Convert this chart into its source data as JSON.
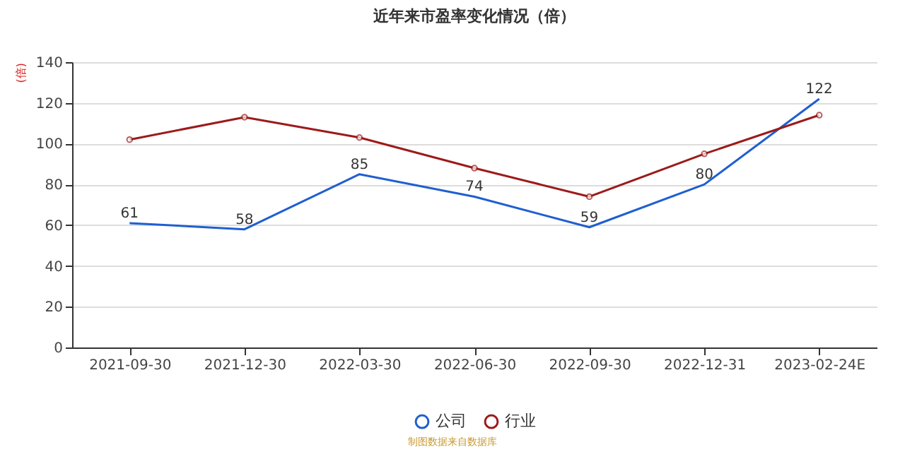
{
  "chart_data": {
    "type": "line",
    "title": "近年来市盈率变化情况（倍）",
    "ylabel": "(倍)",
    "categories": [
      "2021-09-30",
      "2021-12-30",
      "2022-03-30",
      "2022-06-30",
      "2022-09-30",
      "2022-12-31",
      "2023-02-24E"
    ],
    "series": [
      {
        "name": "公司",
        "color": "#1f5fd0",
        "marker": "none",
        "values": [
          61,
          58,
          85,
          74,
          59,
          80,
          122
        ],
        "value_labels": [
          "61",
          "58",
          "85",
          "74",
          "59",
          "80",
          "122"
        ]
      },
      {
        "name": "行业",
        "color": "#9b1b1b",
        "marker": "circle",
        "values": [
          102,
          113,
          103,
          88,
          74,
          95,
          114
        ]
      }
    ],
    "ylim": [
      0,
      140
    ],
    "yticks": [
      0,
      20,
      40,
      60,
      80,
      100,
      120,
      140
    ],
    "grid": "y",
    "legend": "bottom",
    "annotations": [
      "制图数据来自数据库"
    ]
  }
}
